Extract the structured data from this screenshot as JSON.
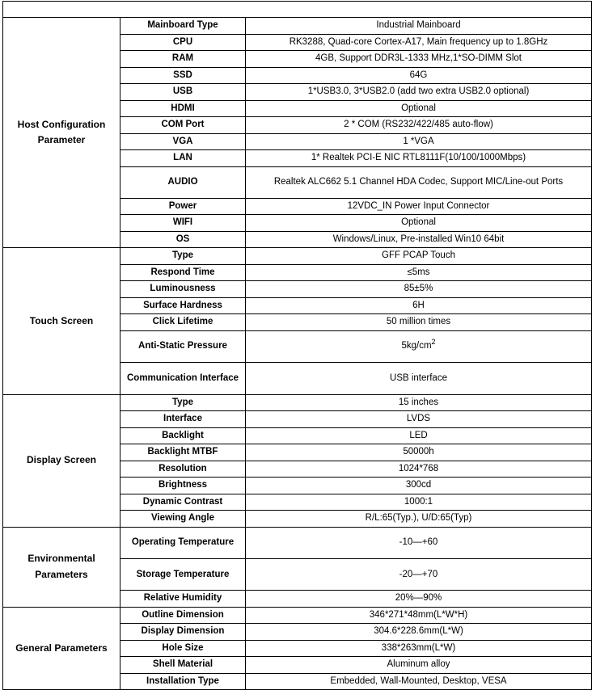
{
  "header": "",
  "sections": [
    {
      "title": "Host Configuration Parameter",
      "rows": [
        {
          "label": "Mainboard Type",
          "value": "Industrial Mainboard"
        },
        {
          "label": "CPU",
          "value": "RK3288, Quad-core Cortex-A17, Main frequency up to 1.8GHz"
        },
        {
          "label": "RAM",
          "value": "4GB, Support DDR3L-1333 MHz,1*SO-DIMM Slot"
        },
        {
          "label": "SSD",
          "value": "64G"
        },
        {
          "label": "USB",
          "value": "1*USB3.0, 3*USB2.0 (add two extra USB2.0 optional)"
        },
        {
          "label": "HDMI",
          "value": "Optional"
        },
        {
          "label": "COM Port",
          "value": "2 * COM (RS232/422/485 auto-flow)"
        },
        {
          "label": "VGA",
          "value": "1 *VGA"
        },
        {
          "label": "LAN",
          "value": "1* Realtek PCI-E NIC RTL8111F(10/100/1000Mbps)"
        },
        {
          "label": "AUDIO",
          "value": "Realtek ALC662 5.1 Channel HDA Codec, Support MIC/Line-out Ports",
          "tall": true
        },
        {
          "label": "Power",
          "value": "12VDC_IN Power Input Connector"
        },
        {
          "label": "WIFI",
          "value": "Optional"
        },
        {
          "label": "OS",
          "value": "Windows/Linux,  Pre-installed Win10 64bit"
        }
      ]
    },
    {
      "title": "Touch Screen",
      "rows": [
        {
          "label": "Type",
          "value": "GFF PCAP Touch"
        },
        {
          "label": "Respond Time",
          "value": "≤5ms"
        },
        {
          "label": "Luminousness",
          "value": "85±5%"
        },
        {
          "label": "Surface Hardness",
          "value": "6H"
        },
        {
          "label": "Click Lifetime",
          "value": "50 million times"
        },
        {
          "label": "Anti-Static Pressure",
          "value": "5kg/cm",
          "sup": "2",
          "tall": true
        },
        {
          "label": "Communication Interface",
          "value": "USB interface",
          "tall": true
        }
      ]
    },
    {
      "title": "Display Screen",
      "rows": [
        {
          "label": "Type",
          "value": "15 inches"
        },
        {
          "label": "Interface",
          "value": "LVDS"
        },
        {
          "label": "Backlight",
          "value": "LED"
        },
        {
          "label": "Backlight MTBF",
          "value": "50000h"
        },
        {
          "label": "Resolution",
          "value": "1024*768"
        },
        {
          "label": "Brightness",
          "value": "300cd"
        },
        {
          "label": "Dynamic Contrast",
          "value": "1000:1"
        },
        {
          "label": "Viewing Angle",
          "value": "R/L:65(Typ.), U/D:65(Typ)"
        }
      ]
    },
    {
      "title": "Environmental Parameters",
      "rows": [
        {
          "label": "Operating Temperature",
          "value": "-10—+60",
          "tall": true
        },
        {
          "label": "Storage Temperature",
          "value": "-20—+70",
          "tall": true
        },
        {
          "label": "Relative Humidity",
          "value": "20%—90%"
        }
      ]
    },
    {
      "title": "General Parameters",
      "rows": [
        {
          "label": "Outline Dimension",
          "value": "346*271*48mm(L*W*H)"
        },
        {
          "label": "Display Dimension",
          "value": "304.6*228.6mm(L*W)"
        },
        {
          "label": "Hole Size",
          "value": "338*263mm(L*W)"
        },
        {
          "label": "Shell Material",
          "value": "Aluminum alloy"
        },
        {
          "label": "Installation Type",
          "value": "Embedded, Wall-Mounted, Desktop, VESA"
        }
      ]
    }
  ]
}
